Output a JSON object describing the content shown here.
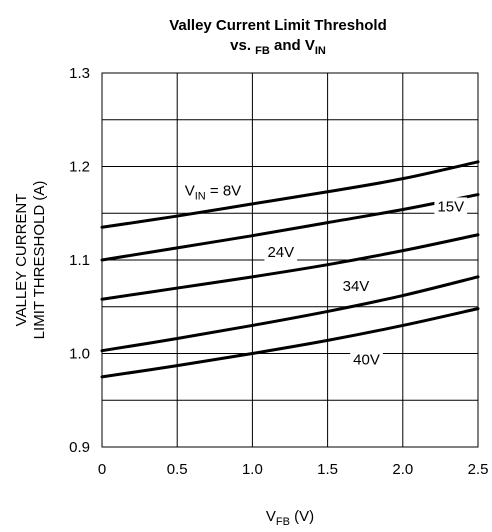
{
  "chart_data": {
    "type": "line",
    "title_line1": "Valley Current Limit Threshold",
    "title_line2": {
      "prefix": "vs. ",
      "sub1": "FB",
      "mid": " and V",
      "sub2": "IN"
    },
    "xlabel": {
      "main": "V",
      "sub": "FB",
      "unit": " (V)"
    },
    "ylabel_line1": "VALLEY CURRENT",
    "ylabel_line2": "LIMIT THRESHOLD (A)",
    "xlim": [
      0,
      2.5
    ],
    "ylim": [
      0.9,
      1.3
    ],
    "x_ticks": [
      "0",
      "0.5",
      "1.0",
      "1.5",
      "2.0",
      "2.5"
    ],
    "y_ticks": [
      "0.9",
      "1.0",
      "1.1",
      "1.2",
      "1.3"
    ],
    "grid": true,
    "series": [
      {
        "name": "8V",
        "label_prefix": "V",
        "label_sub": "IN",
        "label_suffix": " = 8V",
        "x": [
          0,
          0.5,
          1.0,
          1.5,
          2.0,
          2.5
        ],
        "values": [
          1.135,
          1.147,
          1.16,
          1.173,
          1.187,
          1.205
        ]
      },
      {
        "name": "15V",
        "label_prefix": "",
        "label_sub": "",
        "label_suffix": "15V",
        "x": [
          0,
          0.5,
          1.0,
          1.5,
          2.0,
          2.5
        ],
        "values": [
          1.1,
          1.113,
          1.126,
          1.14,
          1.154,
          1.17
        ]
      },
      {
        "name": "24V",
        "label_prefix": "",
        "label_sub": "",
        "label_suffix": "24V",
        "x": [
          0,
          0.5,
          1.0,
          1.5,
          2.0,
          2.5
        ],
        "values": [
          1.058,
          1.07,
          1.082,
          1.095,
          1.11,
          1.127
        ]
      },
      {
        "name": "34V",
        "label_prefix": "",
        "label_sub": "",
        "label_suffix": "34V",
        "x": [
          0,
          0.5,
          1.0,
          1.5,
          2.0,
          2.5
        ],
        "values": [
          1.003,
          1.016,
          1.03,
          1.045,
          1.062,
          1.082
        ]
      },
      {
        "name": "40V",
        "label_prefix": "",
        "label_sub": "",
        "label_suffix": "40V",
        "x": [
          0,
          0.5,
          1.0,
          1.5,
          2.0,
          2.5
        ],
        "values": [
          0.975,
          0.987,
          1.0,
          1.014,
          1.03,
          1.048
        ]
      }
    ]
  }
}
